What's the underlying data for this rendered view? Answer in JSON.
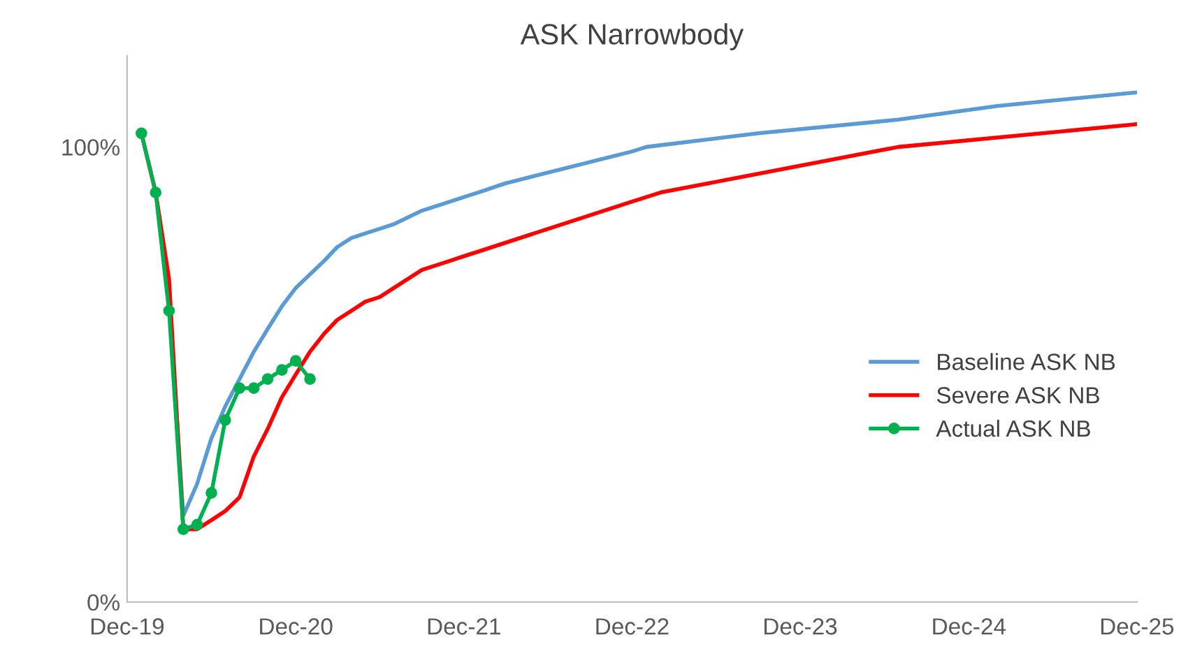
{
  "chart_data": {
    "type": "line",
    "title": "ASK Narrowbody",
    "series": [
      {
        "name": "Baseline ASK NB",
        "color": "#5b9bd5",
        "marker": "none",
        "x": [
          "2020-03",
          "2020-04",
          "2020-05",
          "2020-06",
          "2020-07",
          "2020-08",
          "2020-09",
          "2020-10",
          "2020-11",
          "2020-12",
          "2021-01",
          "2021-02",
          "2021-03",
          "2021-04",
          "2021-05",
          "2021-06",
          "2021-07",
          "2021-09",
          "2021-11",
          "2021-12",
          "2022-01",
          "2022-03",
          "2022-12",
          "2023-01",
          "2023-09",
          "2024-07",
          "2025-02",
          "2025-12"
        ],
        "values": [
          66,
          19,
          26,
          36,
          43,
          49,
          55,
          60,
          65,
          69,
          72,
          75,
          78,
          80,
          81,
          82,
          83,
          86,
          88,
          89,
          90,
          92,
          99,
          100,
          103,
          106,
          109,
          112
        ]
      },
      {
        "name": "Severe ASK NB",
        "color": "#ff0000",
        "marker": "none",
        "x": [
          "2020-01",
          "2020-02",
          "2020-03",
          "2020-04",
          "2020-05",
          "2020-06",
          "2020-07",
          "2020-08",
          "2020-09",
          "2020-10",
          "2020-11",
          "2020-12",
          "2021-01",
          "2021-02",
          "2021-03",
          "2021-04",
          "2021-05",
          "2021-06",
          "2021-09",
          "2021-11",
          "2021-12",
          "2022-01",
          "2022-12",
          "2023-01",
          "2023-02",
          "2024-07",
          "2025-12"
        ],
        "values": [
          103,
          90,
          71,
          16,
          16,
          18,
          20,
          23,
          32,
          38,
          45,
          50,
          55,
          59,
          62,
          64,
          66,
          67,
          73,
          75,
          76,
          77,
          88,
          89,
          90,
          100,
          105
        ]
      },
      {
        "name": "Actual ASK NB",
        "color": "#00b050",
        "marker": "circle",
        "x": [
          "2020-01",
          "2020-02",
          "2020-03",
          "2020-04",
          "2020-05",
          "2020-06",
          "2020-07",
          "2020-08",
          "2020-09",
          "2020-10",
          "2020-11",
          "2020-12",
          "2021-01"
        ],
        "values": [
          103,
          90,
          64,
          16,
          17,
          24,
          40,
          47,
          47,
          49,
          51,
          53,
          49
        ]
      }
    ],
    "xlim": [
      "2019-12",
      "2025-12"
    ],
    "xticks": [
      {
        "value": "2019-12",
        "label": "Dec-19"
      },
      {
        "value": "2020-12",
        "label": "Dec-20"
      },
      {
        "value": "2021-12",
        "label": "Dec-21"
      },
      {
        "value": "2022-12",
        "label": "Dec-22"
      },
      {
        "value": "2023-12",
        "label": "Dec-23"
      },
      {
        "value": "2024-12",
        "label": "Dec-24"
      },
      {
        "value": "2025-12",
        "label": "Dec-25"
      }
    ],
    "ylim": [
      0,
      120
    ],
    "yticks": [
      {
        "value": 0,
        "label": "0%"
      },
      {
        "value": 100,
        "label": "100%"
      }
    ],
    "grid": false,
    "legend": "center right"
  }
}
